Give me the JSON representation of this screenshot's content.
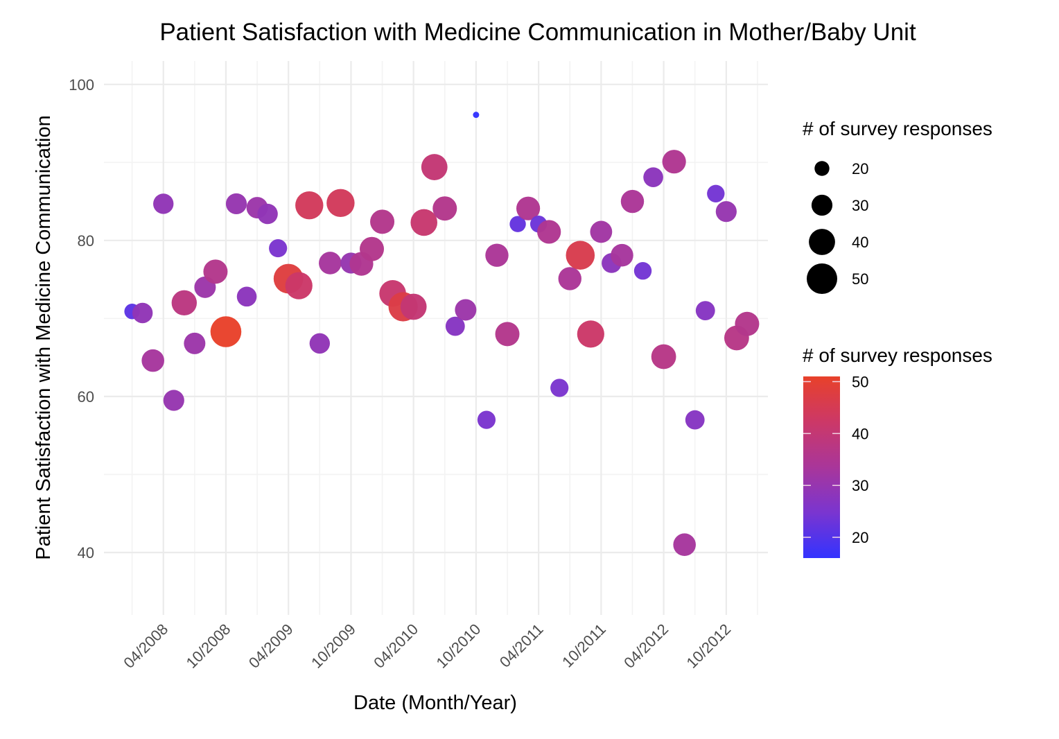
{
  "chart_data": {
    "type": "scatter",
    "title": "Patient Satisfaction with Medicine Communication in Mother/Baby Unit",
    "xlabel": "Date (Month/Year)",
    "ylabel": "Patient Satisfaction with Medicine Communication",
    "x_tick_labels": [
      "04/2008",
      "10/2008",
      "04/2009",
      "10/2009",
      "04/2010",
      "10/2010",
      "04/2011",
      "10/2011",
      "04/2012",
      "10/2012"
    ],
    "x_ticks": [
      "2008-04",
      "2008-10",
      "2009-04",
      "2009-10",
      "2010-04",
      "2010-10",
      "2011-04",
      "2011-10",
      "2012-04",
      "2012-10"
    ],
    "xlim": [
      "2007-10",
      "2013-02"
    ],
    "y_ticks": [
      40,
      60,
      80,
      100
    ],
    "ylim": [
      32,
      103
    ],
    "grid": true,
    "size_legend": {
      "title": "# of survey responses",
      "values": [
        20,
        30,
        40,
        50
      ],
      "placement": "right-top"
    },
    "color_legend": {
      "title": "# of survey responses",
      "ticks": [
        20,
        30,
        40,
        50
      ],
      "range": [
        16,
        51
      ],
      "low_color": "#3333ff",
      "high_color": "#e8412a",
      "placement": "right-bottom"
    },
    "points": [
      {
        "date": "2008-01",
        "satisfaction": 70.9,
        "responses": 21
      },
      {
        "date": "2008-02",
        "satisfaction": 70.7,
        "responses": 29
      },
      {
        "date": "2008-03",
        "satisfaction": 64.6,
        "responses": 33
      },
      {
        "date": "2008-04",
        "satisfaction": 84.7,
        "responses": 29
      },
      {
        "date": "2008-05",
        "satisfaction": 59.5,
        "responses": 30
      },
      {
        "date": "2008-06",
        "satisfaction": 72.0,
        "responses": 38
      },
      {
        "date": "2008-07",
        "satisfaction": 66.8,
        "responses": 31
      },
      {
        "date": "2008-08",
        "satisfaction": 74.0,
        "responses": 31
      },
      {
        "date": "2008-09",
        "satisfaction": 76.0,
        "responses": 36
      },
      {
        "date": "2008-10",
        "satisfaction": 68.3,
        "responses": 51
      },
      {
        "date": "2008-11",
        "satisfaction": 84.7,
        "responses": 30
      },
      {
        "date": "2008-12",
        "satisfaction": 72.8,
        "responses": 28
      },
      {
        "date": "2009-01",
        "satisfaction": 84.2,
        "responses": 31
      },
      {
        "date": "2009-02",
        "satisfaction": 83.4,
        "responses": 29
      },
      {
        "date": "2009-03",
        "satisfaction": 79.0,
        "responses": 25
      },
      {
        "date": "2009-04",
        "satisfaction": 75.1,
        "responses": 48
      },
      {
        "date": "2009-05",
        "satisfaction": 74.2,
        "responses": 42
      },
      {
        "date": "2009-06",
        "satisfaction": 84.5,
        "responses": 44
      },
      {
        "date": "2009-07",
        "satisfaction": 66.8,
        "responses": 29
      },
      {
        "date": "2009-08",
        "satisfaction": 77.1,
        "responses": 33
      },
      {
        "date": "2009-09",
        "satisfaction": 84.8,
        "responses": 44
      },
      {
        "date": "2009-10",
        "satisfaction": 77.1,
        "responses": 30
      },
      {
        "date": "2009-11",
        "satisfaction": 77.0,
        "responses": 35
      },
      {
        "date": "2009-12",
        "satisfaction": 78.9,
        "responses": 36
      },
      {
        "date": "2010-01",
        "satisfaction": 82.4,
        "responses": 36
      },
      {
        "date": "2010-02",
        "satisfaction": 73.2,
        "responses": 41
      },
      {
        "date": "2010-03",
        "satisfaction": 71.5,
        "responses": 47
      },
      {
        "date": "2010-04",
        "satisfaction": 71.5,
        "responses": 40
      },
      {
        "date": "2010-05",
        "satisfaction": 82.3,
        "responses": 41
      },
      {
        "date": "2010-06",
        "satisfaction": 89.4,
        "responses": 40
      },
      {
        "date": "2010-07",
        "satisfaction": 84.1,
        "responses": 36
      },
      {
        "date": "2010-08",
        "satisfaction": 69.0,
        "responses": 27
      },
      {
        "date": "2010-09",
        "satisfaction": 71.1,
        "responses": 31
      },
      {
        "date": "2010-10",
        "satisfaction": 96.1,
        "responses": 16
      },
      {
        "date": "2010-11",
        "satisfaction": 57.0,
        "responses": 25
      },
      {
        "date": "2010-12",
        "satisfaction": 78.1,
        "responses": 34
      },
      {
        "date": "2011-01",
        "satisfaction": 68.0,
        "responses": 36
      },
      {
        "date": "2011-02",
        "satisfaction": 82.1,
        "responses": 22
      },
      {
        "date": "2011-03",
        "satisfaction": 84.1,
        "responses": 35
      },
      {
        "date": "2011-04",
        "satisfaction": 82.1,
        "responses": 23
      },
      {
        "date": "2011-05",
        "satisfaction": 81.1,
        "responses": 35
      },
      {
        "date": "2011-06",
        "satisfaction": 61.1,
        "responses": 25
      },
      {
        "date": "2011-07",
        "satisfaction": 75.1,
        "responses": 34
      },
      {
        "date": "2011-08",
        "satisfaction": 78.1,
        "responses": 46
      },
      {
        "date": "2011-09",
        "satisfaction": 68.0,
        "responses": 42
      },
      {
        "date": "2011-10",
        "satisfaction": 81.1,
        "responses": 32
      },
      {
        "date": "2011-11",
        "satisfaction": 77.1,
        "responses": 28
      },
      {
        "date": "2011-12",
        "satisfaction": 78.1,
        "responses": 33
      },
      {
        "date": "2012-01",
        "satisfaction": 85.0,
        "responses": 34
      },
      {
        "date": "2012-02",
        "satisfaction": 76.1,
        "responses": 24
      },
      {
        "date": "2012-03",
        "satisfaction": 88.1,
        "responses": 28
      },
      {
        "date": "2012-04",
        "satisfaction": 65.1,
        "responses": 37
      },
      {
        "date": "2012-05",
        "satisfaction": 90.1,
        "responses": 35
      },
      {
        "date": "2012-06",
        "satisfaction": 41.0,
        "responses": 33
      },
      {
        "date": "2012-07",
        "satisfaction": 57.0,
        "responses": 27
      },
      {
        "date": "2012-08",
        "satisfaction": 71.0,
        "responses": 27
      },
      {
        "date": "2012-09",
        "satisfaction": 86.0,
        "responses": 24
      },
      {
        "date": "2012-10",
        "satisfaction": 83.7,
        "responses": 30
      },
      {
        "date": "2012-11",
        "satisfaction": 67.5,
        "responses": 37
      },
      {
        "date": "2012-12",
        "satisfaction": 69.3,
        "responses": 36
      }
    ]
  }
}
